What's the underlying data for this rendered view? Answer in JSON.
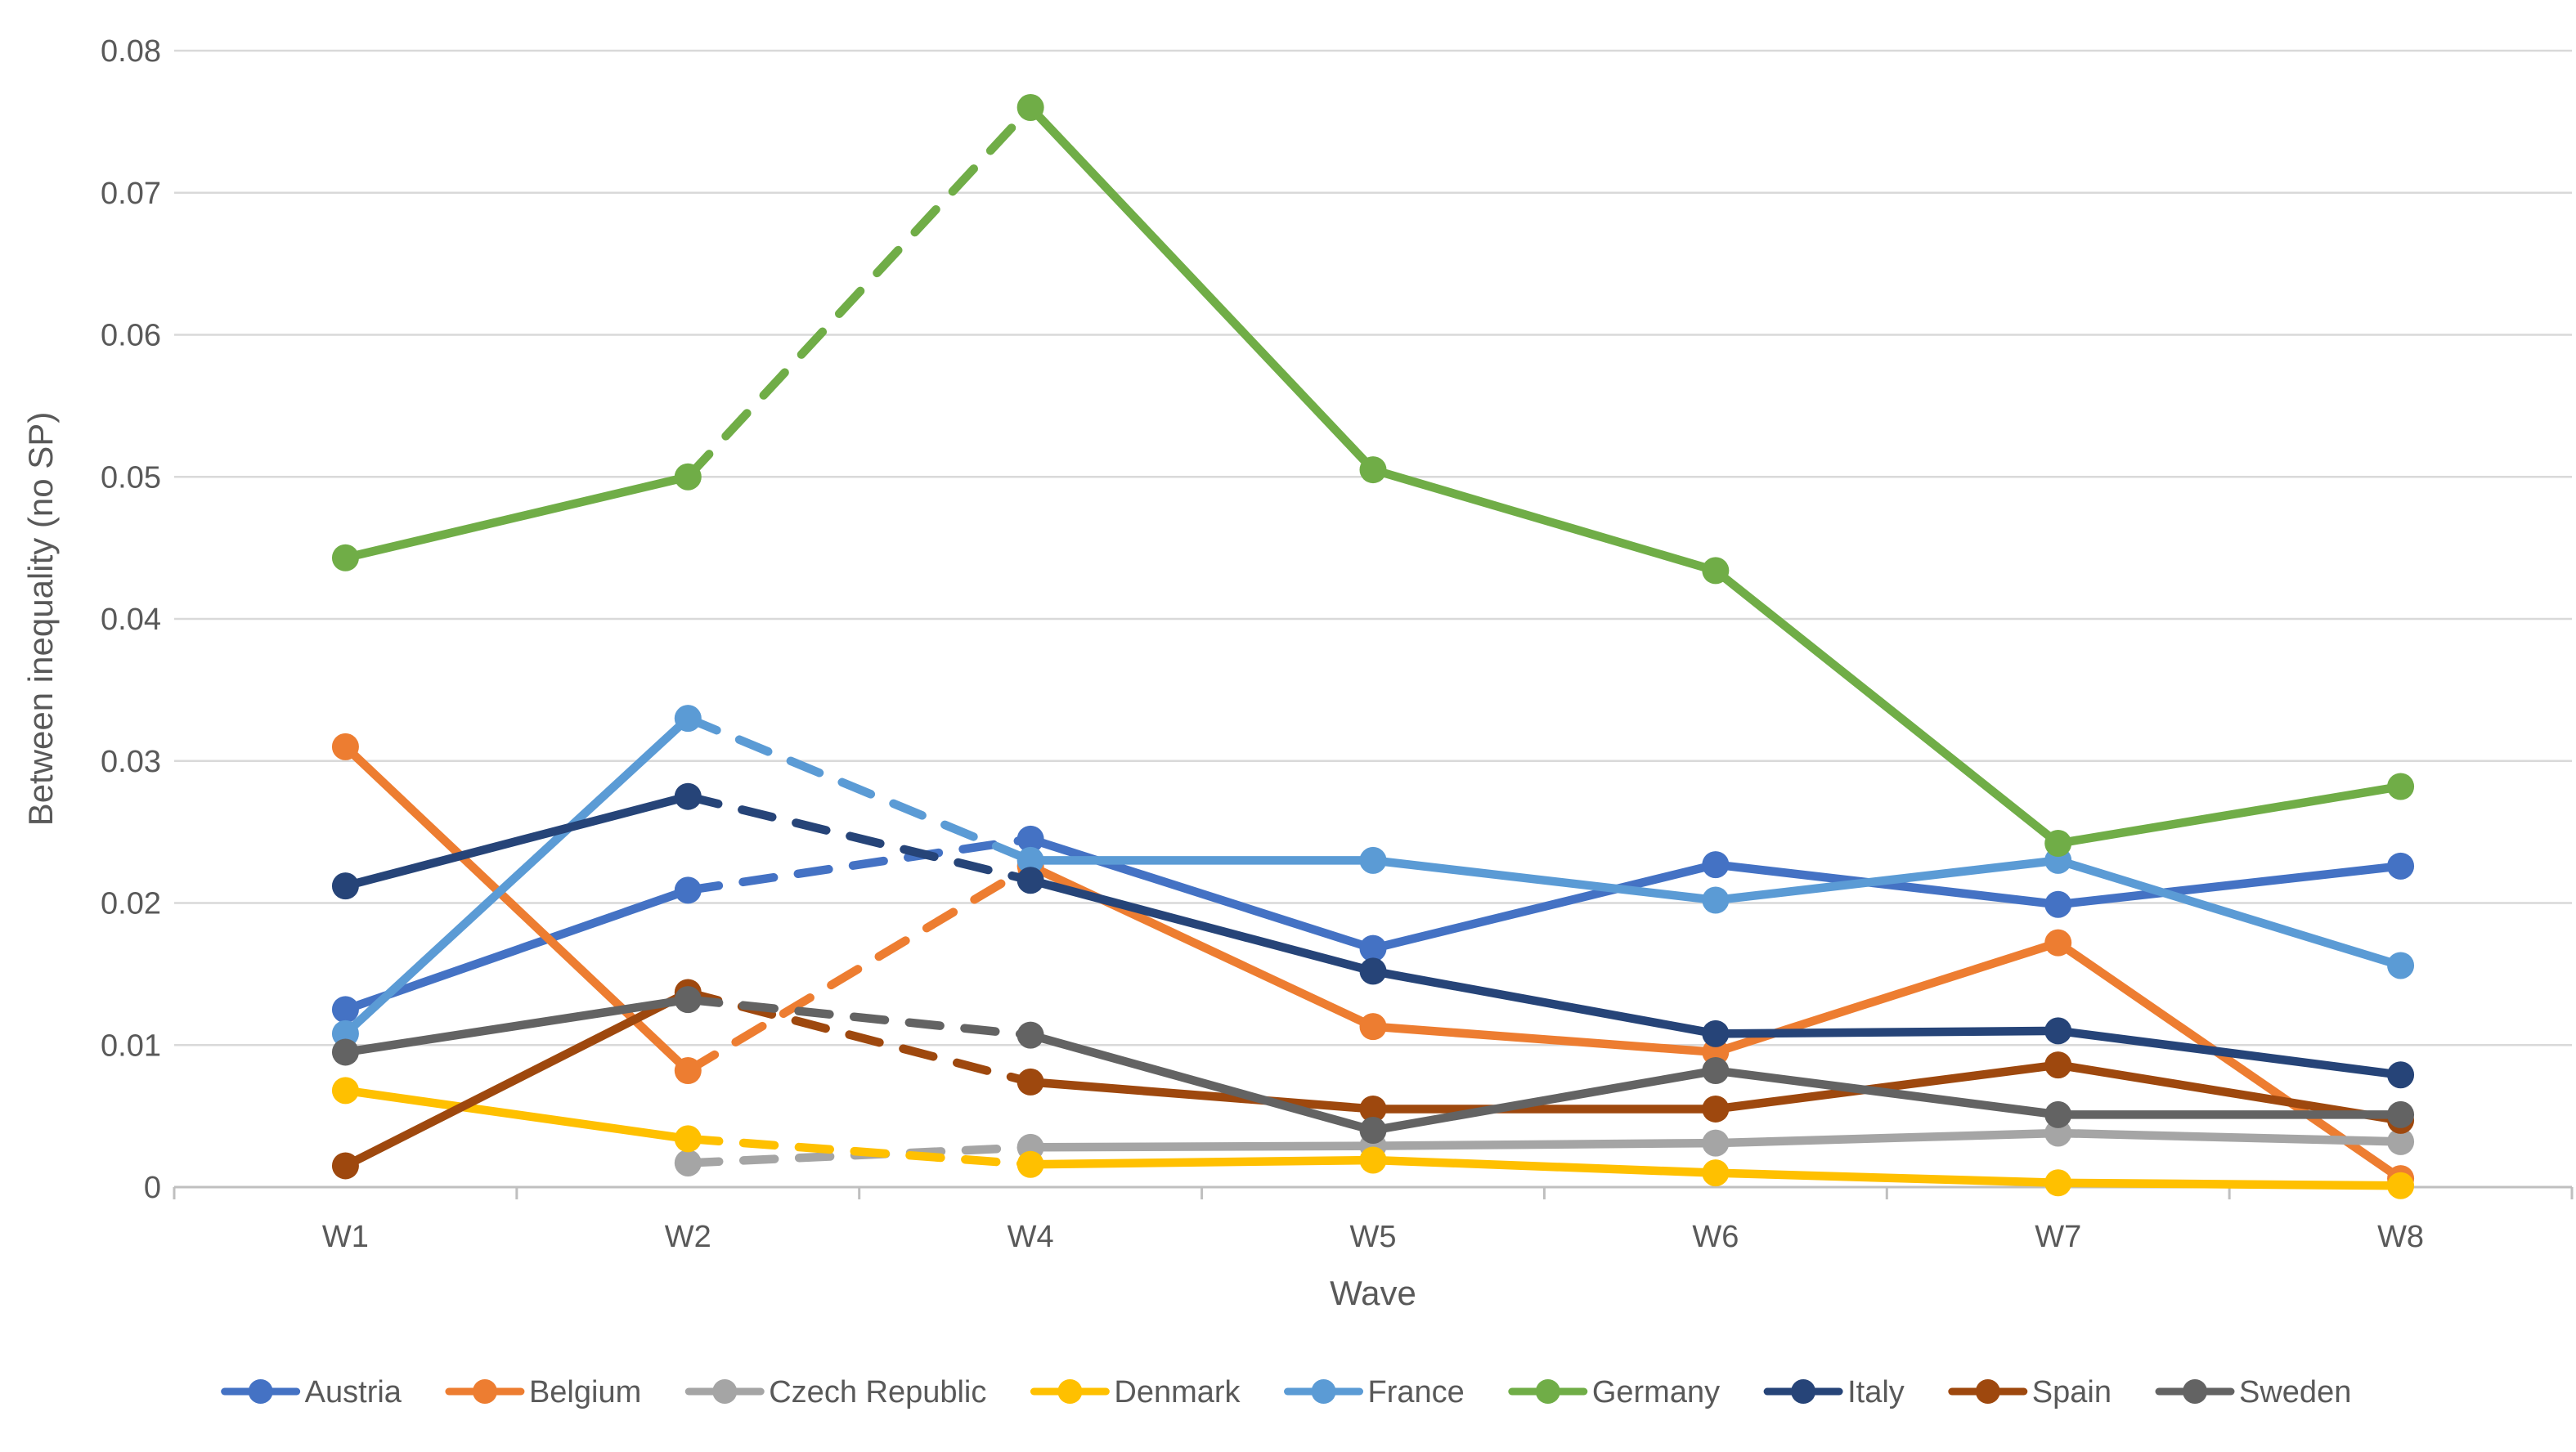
{
  "chart_data": {
    "type": "line",
    "title": "",
    "xlabel": "Wave",
    "ylabel": "Between inequality (no SP)",
    "categories": [
      "W1",
      "W2",
      "W4",
      "W5",
      "W6",
      "W7",
      "W8"
    ],
    "ylim": [
      0,
      0.08
    ],
    "ytick_step": 0.01,
    "ytick_labels": [
      "0",
      "0.01",
      "0.02",
      "0.03",
      "0.04",
      "0.05",
      "0.06",
      "0.07",
      "0.08"
    ],
    "grid": true,
    "legend_position": "bottom",
    "dashed_segment": {
      "from": "W2",
      "to": "W4"
    },
    "series": [
      {
        "name": "Austria",
        "color": "#4472C4",
        "values": [
          0.0125,
          0.0209,
          0.0245,
          0.0168,
          0.0227,
          0.0199,
          0.0226
        ]
      },
      {
        "name": "Belgium",
        "color": "#ED7D31",
        "values": [
          0.031,
          0.0082,
          0.0226,
          0.0113,
          0.0095,
          0.0172,
          0.0006
        ]
      },
      {
        "name": "Czech Republic",
        "color": "#A5A5A5",
        "values": [
          null,
          0.0017,
          0.0028,
          0.0029,
          0.0031,
          0.0038,
          0.0032
        ]
      },
      {
        "name": "Denmark",
        "color": "#FFC000",
        "values": [
          0.0068,
          0.0034,
          0.0016,
          0.0019,
          0.001,
          0.0003,
          0.0001
        ]
      },
      {
        "name": "France",
        "color": "#5B9BD5",
        "values": [
          0.0108,
          0.033,
          0.023,
          0.023,
          0.0202,
          0.023,
          0.0156
        ]
      },
      {
        "name": "Germany",
        "color": "#70AD47",
        "values": [
          0.0443,
          0.05,
          0.076,
          0.0505,
          0.0434,
          0.0242,
          0.0282
        ]
      },
      {
        "name": "Italy",
        "color": "#264478",
        "values": [
          0.0212,
          0.0275,
          0.0216,
          0.0152,
          0.0108,
          0.011,
          0.0079
        ]
      },
      {
        "name": "Spain",
        "color": "#9E480E",
        "values": [
          0.0015,
          0.0137,
          0.0074,
          0.0055,
          0.0055,
          0.0086,
          0.0047
        ]
      },
      {
        "name": "Sweden",
        "color": "#636363",
        "values": [
          0.0095,
          0.0132,
          0.0107,
          0.004,
          0.0082,
          0.0051,
          0.0051
        ]
      }
    ]
  },
  "colors": {
    "gridline": "#D9D9D9",
    "axis_line": "#BFBFBF",
    "text": "#595959",
    "background": "#FFFFFF"
  }
}
